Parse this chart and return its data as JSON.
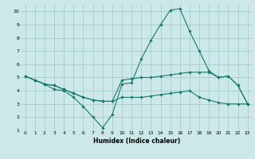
{
  "xlabel": "Humidex (Indice chaleur)",
  "xlim": [
    -0.5,
    23.5
  ],
  "ylim": [
    1,
    10.5
  ],
  "xticks": [
    0,
    1,
    2,
    3,
    4,
    5,
    6,
    7,
    8,
    9,
    10,
    11,
    12,
    13,
    14,
    15,
    16,
    17,
    18,
    19,
    20,
    21,
    22,
    23
  ],
  "yticks": [
    1,
    2,
    3,
    4,
    5,
    6,
    7,
    8,
    9,
    10
  ],
  "bg_color": "#cce8e8",
  "line_color": "#1a7a6e",
  "grid_color": "#9fc8c8",
  "lines": [
    {
      "x": [
        0,
        1,
        2,
        3,
        4,
        5,
        6,
        7,
        8,
        9,
        10,
        11,
        12,
        13,
        14,
        15,
        16,
        17,
        18,
        19,
        20,
        21,
        22,
        23
      ],
      "y": [
        5.1,
        4.8,
        4.5,
        4.1,
        4.0,
        3.5,
        2.8,
        2.0,
        1.2,
        2.2,
        4.5,
        4.6,
        6.4,
        7.8,
        9.0,
        10.1,
        10.2,
        8.5,
        7.0,
        5.5,
        5.0,
        5.1,
        4.4,
        3.0
      ]
    },
    {
      "x": [
        0,
        1,
        2,
        3,
        4,
        5,
        6,
        7,
        8,
        9,
        10,
        11,
        12,
        13,
        14,
        15,
        16,
        17,
        18,
        19,
        20,
        21,
        22,
        23
      ],
      "y": [
        5.1,
        4.8,
        4.5,
        4.4,
        4.1,
        3.8,
        3.5,
        3.3,
        3.2,
        3.2,
        4.8,
        4.9,
        5.0,
        5.0,
        5.1,
        5.2,
        5.3,
        5.4,
        5.4,
        5.4,
        5.0,
        5.1,
        4.4,
        3.0
      ]
    },
    {
      "x": [
        0,
        1,
        2,
        3,
        4,
        5,
        6,
        7,
        8,
        9,
        10,
        11,
        12,
        13,
        14,
        15,
        16,
        17,
        18,
        19,
        20,
        21,
        22,
        23
      ],
      "y": [
        5.1,
        4.8,
        4.5,
        4.4,
        4.1,
        3.8,
        3.5,
        3.3,
        3.2,
        3.2,
        3.5,
        3.5,
        3.5,
        3.6,
        3.7,
        3.8,
        3.9,
        4.0,
        3.5,
        3.3,
        3.1,
        3.0,
        3.0,
        3.0
      ]
    }
  ]
}
